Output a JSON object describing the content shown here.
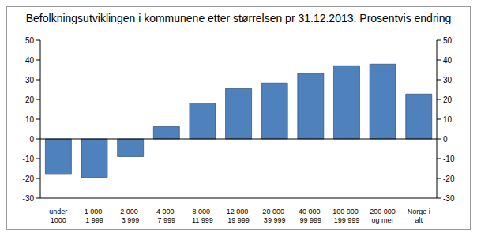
{
  "chart_data": {
    "type": "bar",
    "title": "Befolkningsutviklingen i kommunene etter størrelsen pr 31.12.2013. Prosentvis endring",
    "categories": [
      "under 1000",
      "1 000-1 999",
      "2 000-3 999",
      "4 000-7 999",
      "8 000-11 999",
      "12 000-19 999",
      "20 000-39 999",
      "40 000-99 999",
      "100 000-199 999",
      "200 000 og mer",
      "Norge i alt"
    ],
    "values": [
      -18,
      -19.5,
      -9,
      6.2,
      18.2,
      25.5,
      28.3,
      33.3,
      37.1,
      37.9,
      22.7
    ],
    "color": "#4f81bd",
    "ylim": [
      -30,
      50
    ],
    "yticks": [
      -30,
      -20,
      -10,
      0,
      10,
      20,
      30,
      40,
      50
    ],
    "y2lim": [
      -30,
      50
    ],
    "y2ticks": [
      -30,
      -20,
      -10,
      0,
      10,
      20,
      30,
      40,
      50
    ],
    "grid": false
  }
}
